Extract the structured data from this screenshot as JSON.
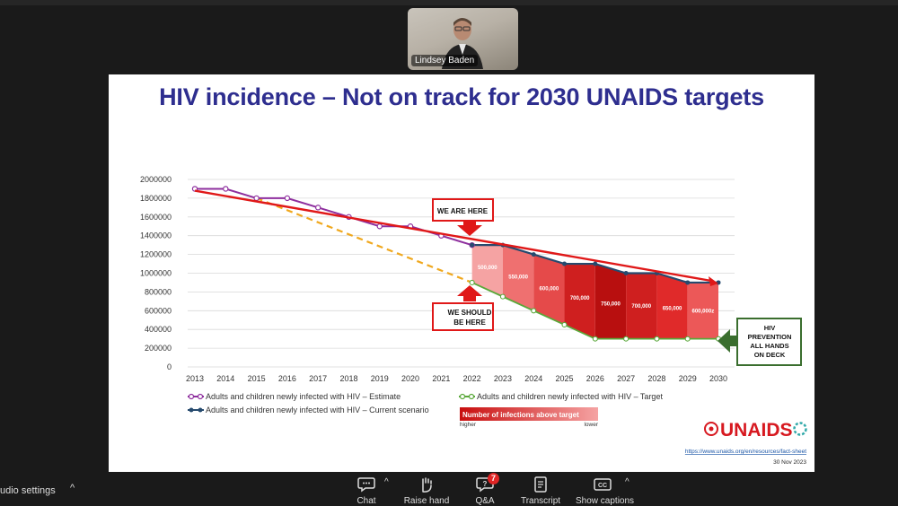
{
  "participant": {
    "name": "Lindsey Baden"
  },
  "slide": {
    "title": "HIV incidence – Not on track for 2030 UNAIDS targets",
    "logo_text": "UNAIDS",
    "source_url": "https://www.unaids.org/en/resources/fact-sheet",
    "date": "30 Nov 2023",
    "colors": {
      "title": "#2e2e8f",
      "estimate": "#8e2f9e",
      "target": "#5aa83a",
      "current": "#264a6e",
      "trend": "#e01818",
      "dashed": "#f0a81e"
    }
  },
  "chart_data": {
    "type": "line",
    "x": [
      2013,
      2014,
      2015,
      2016,
      2017,
      2018,
      2019,
      2020,
      2021,
      2022,
      2023,
      2024,
      2025,
      2026,
      2027,
      2028,
      2029,
      2030
    ],
    "ylim": [
      0,
      2000000
    ],
    "yticks": [
      "2000000",
      "1800000",
      "1600000",
      "1400000",
      "1200000",
      "1000000",
      "800000",
      "600000",
      "400000",
      "200000",
      "0"
    ],
    "grid": true,
    "series": [
      {
        "name": "Adults and children newly infected with HIV – Estimate",
        "x": [
          2013,
          2014,
          2015,
          2016,
          2017,
          2018,
          2019,
          2020,
          2021,
          2022
        ],
        "values": [
          1900000,
          1900000,
          1800000,
          1800000,
          1700000,
          1600000,
          1500000,
          1500000,
          1400000,
          1300000
        ]
      },
      {
        "name": "Adults and children newly infected with HIV – Current scenario",
        "x": [
          2022,
          2023,
          2024,
          2025,
          2026,
          2027,
          2028,
          2029,
          2030
        ],
        "values": [
          1300000,
          1300000,
          1200000,
          1100000,
          1100000,
          1000000,
          1000000,
          900000,
          900000
        ]
      },
      {
        "name": "Adults and children newly infected with HIV – Target",
        "x": [
          2022,
          2023,
          2024,
          2025,
          2026,
          2027,
          2028,
          2029,
          2030
        ],
        "values": [
          900000,
          750000,
          600000,
          450000,
          300000,
          300000,
          300000,
          300000,
          300000
        ]
      }
    ],
    "gap_labels": [
      {
        "x": 2022.5,
        "text": "500,000"
      },
      {
        "x": 2023.5,
        "text": "550,000"
      },
      {
        "x": 2024.5,
        "text": "600,000"
      },
      {
        "x": 2025.5,
        "text": "700,000"
      },
      {
        "x": 2026.5,
        "text": "750,000"
      },
      {
        "x": 2027.5,
        "text": "700,000"
      },
      {
        "x": 2028.5,
        "text": "650,000"
      },
      {
        "x": 2029.5,
        "text": "600,000z"
      }
    ],
    "gap_colors": [
      "#f5a3a3",
      "#ef7070",
      "#e54a4a",
      "#cf1f1f",
      "#b80f0f",
      "#cf1f1f",
      "#e02a2a",
      "#ec5858"
    ],
    "annotations": {
      "we_are_here": "WE ARE HERE",
      "we_should_line1": "WE SHOULD",
      "we_should_line2": "BE HERE",
      "hiv_prevention": [
        "HIV",
        "PREVENTION",
        "ALL HANDS",
        "ON DECK"
      ]
    },
    "gradient_legend": {
      "title": "Number of infections above target",
      "left": "higher",
      "right": "lower"
    }
  },
  "toolbar": {
    "audio_settings": "udio settings",
    "chat": "Chat",
    "raise_hand": "Raise hand",
    "qa": "Q&A",
    "qa_badge": "7",
    "transcript": "Transcript",
    "show_captions": "Show captions"
  }
}
